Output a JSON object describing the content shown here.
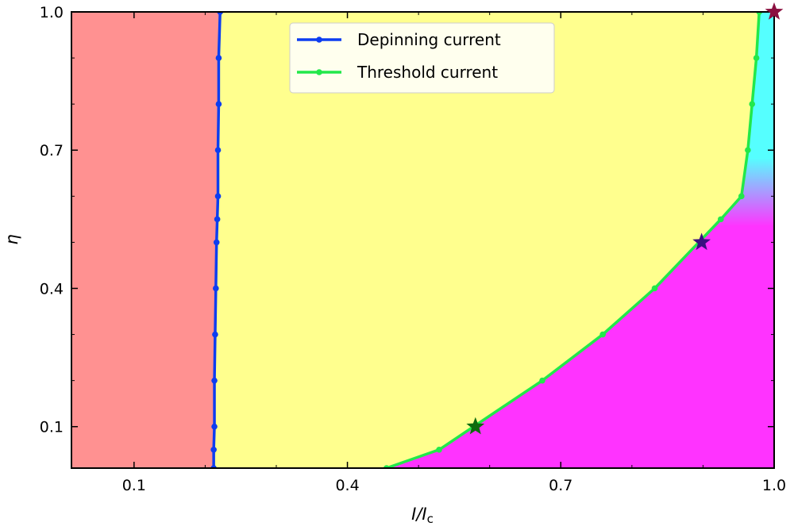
{
  "chart_data": {
    "type": "line",
    "title": "",
    "xlabel": "I/I_c",
    "ylabel": "η",
    "xlim": [
      0.012,
      1.0
    ],
    "ylim": [
      0.01,
      1.0
    ],
    "xticks": [
      0.1,
      0.4,
      0.7,
      1.0
    ],
    "xtick_labels": [
      "0.1",
      "0.4",
      "0.7",
      "1.0"
    ],
    "xminor": [
      0.2,
      0.3,
      0.5,
      0.6,
      0.8,
      0.9
    ],
    "yticks": [
      0.1,
      0.4,
      0.7,
      1.0
    ],
    "ytick_labels": [
      "0.1",
      "0.4",
      "0.7",
      "1.0"
    ],
    "yminor": [
      0.2,
      0.3,
      0.5,
      0.6,
      0.8,
      0.9
    ],
    "grid": false,
    "legend_position": "upper center",
    "series": [
      {
        "name": "Depinning current",
        "color": "#0d3df0",
        "points": [
          {
            "x": 0.212,
            "y": 0.01
          },
          {
            "x": 0.212,
            "y": 0.05
          },
          {
            "x": 0.213,
            "y": 0.1
          },
          {
            "x": 0.213,
            "y": 0.2
          },
          {
            "x": 0.214,
            "y": 0.3
          },
          {
            "x": 0.215,
            "y": 0.4
          },
          {
            "x": 0.216,
            "y": 0.5
          },
          {
            "x": 0.217,
            "y": 0.55
          },
          {
            "x": 0.218,
            "y": 0.6
          },
          {
            "x": 0.218,
            "y": 0.7
          },
          {
            "x": 0.219,
            "y": 0.8
          },
          {
            "x": 0.219,
            "y": 0.9
          },
          {
            "x": 0.221,
            "y": 1.0
          }
        ]
      },
      {
        "name": "Threshold current",
        "color": "#22e84a",
        "points": [
          {
            "x": 0.455,
            "y": 0.01
          },
          {
            "x": 0.529,
            "y": 0.05
          },
          {
            "x": 0.674,
            "y": 0.2
          },
          {
            "x": 0.759,
            "y": 0.3
          },
          {
            "x": 0.832,
            "y": 0.4
          },
          {
            "x": 0.925,
            "y": 0.55
          },
          {
            "x": 0.954,
            "y": 0.6
          },
          {
            "x": 0.963,
            "y": 0.7
          },
          {
            "x": 0.969,
            "y": 0.8
          },
          {
            "x": 0.975,
            "y": 0.9
          },
          {
            "x": 0.979,
            "y": 1.0
          }
        ]
      }
    ],
    "markers": [
      {
        "label": "star-green",
        "x": 0.58,
        "y": 0.1,
        "color": "#0e6b0e"
      },
      {
        "label": "star-purple",
        "x": 0.898,
        "y": 0.5,
        "color": "#3a1080"
      },
      {
        "label": "star-maroon",
        "x": 1.0,
        "y": 1.0,
        "color": "#8b1040"
      }
    ],
    "regions": [
      {
        "name": "pinned",
        "color": "#ff9191"
      },
      {
        "name": "intermediate",
        "color": "#ffff8e"
      },
      {
        "name": "high-eta",
        "color": "#55ffff"
      },
      {
        "name": "low-eta",
        "color": "#ff33ff"
      }
    ]
  }
}
